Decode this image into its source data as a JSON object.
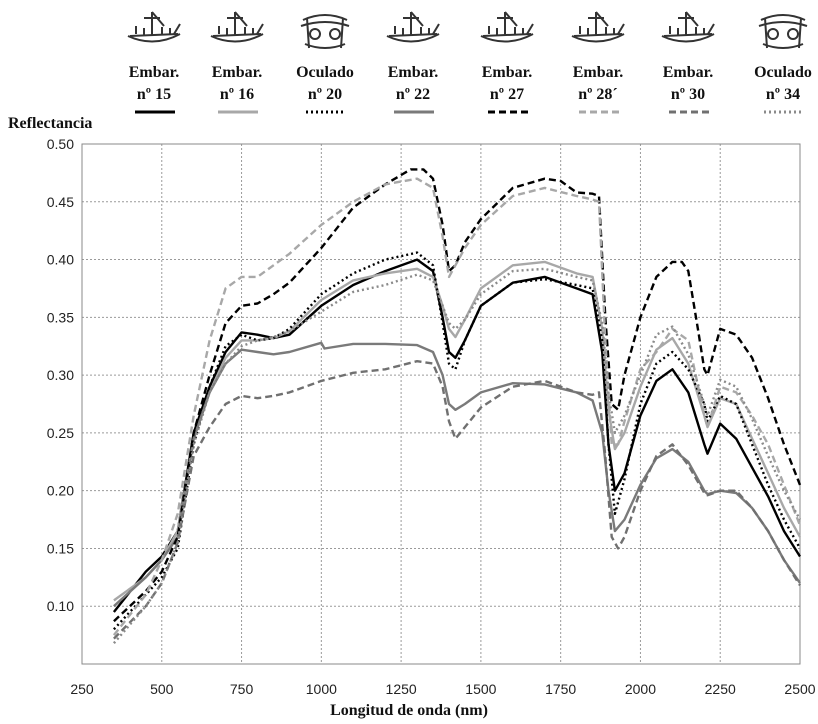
{
  "legend": [
    {
      "icon": "boat-petroglyph-icon",
      "name": "Embar.\nnº 15",
      "color": "#000000",
      "dash": "solid"
    },
    {
      "icon": "boat-petroglyph-icon",
      "name": "Embar.\nnº 16",
      "color": "#a8a8a8",
      "dash": "solid"
    },
    {
      "icon": "eye-idol-petroglyph-icon",
      "name": "Oculado\nnº 20",
      "color": "#000000",
      "dash": "dotted"
    },
    {
      "icon": "boat-petroglyph-icon",
      "name": "Embar.\nnº 22",
      "color": "#7a7a7a",
      "dash": "solid"
    },
    {
      "icon": "boat-petroglyph-icon",
      "name": "Embar.\nnº 27",
      "color": "#000000",
      "dash": "dashed"
    },
    {
      "icon": "boat-petroglyph-icon",
      "name": "Embar.\nnº 28´",
      "color": "#a8a8a8",
      "dash": "dashed"
    },
    {
      "icon": "boat-petroglyph-icon",
      "name": "Embar.\nnº 30",
      "color": "#707070",
      "dash": "dashed"
    },
    {
      "icon": "eye-idol-petroglyph-icon",
      "name": "Oculado\nnº 34",
      "color": "#8a8a8a",
      "dash": "dotted"
    }
  ],
  "chart_data": {
    "type": "line",
    "title": "",
    "xlabel": "Longitud de onda (nm)",
    "ylabel": "Reflectancia",
    "xlim": [
      250,
      2500
    ],
    "ylim": [
      0.05,
      0.5
    ],
    "xticks": [
      250,
      500,
      750,
      1000,
      1250,
      1500,
      1750,
      2000,
      2250,
      2500
    ],
    "yticks": [
      0.1,
      0.15,
      0.2,
      0.25,
      0.3,
      0.35,
      0.4,
      0.45,
      0.5
    ],
    "grid": true,
    "legend_placement": "top",
    "series": [
      {
        "name": "Embar. nº 15",
        "x": [
          350,
          450,
          500,
          550,
          600,
          650,
          700,
          750,
          800,
          850,
          900,
          1000,
          1100,
          1200,
          1300,
          1350,
          1380,
          1400,
          1420,
          1450,
          1500,
          1600,
          1700,
          1800,
          1850,
          1880,
          1900,
          1920,
          1950,
          2000,
          2050,
          2100,
          2150,
          2200,
          2210,
          2250,
          2300,
          2350,
          2400,
          2450,
          2500
        ],
        "y": [
          0.095,
          0.13,
          0.143,
          0.165,
          0.25,
          0.29,
          0.32,
          0.337,
          0.335,
          0.332,
          0.335,
          0.36,
          0.378,
          0.39,
          0.4,
          0.39,
          0.35,
          0.32,
          0.315,
          0.33,
          0.36,
          0.38,
          0.385,
          0.375,
          0.37,
          0.32,
          0.24,
          0.2,
          0.215,
          0.265,
          0.295,
          0.305,
          0.285,
          0.24,
          0.232,
          0.258,
          0.245,
          0.22,
          0.195,
          0.165,
          0.143
        ]
      },
      {
        "name": "Embar. nº 16",
        "x": [
          350,
          450,
          500,
          550,
          600,
          650,
          700,
          750,
          800,
          850,
          900,
          1000,
          1100,
          1200,
          1300,
          1350,
          1380,
          1400,
          1420,
          1450,
          1500,
          1600,
          1700,
          1800,
          1850,
          1880,
          1900,
          1920,
          1950,
          2000,
          2050,
          2100,
          2150,
          2200,
          2210,
          2250,
          2300,
          2350,
          2400,
          2450,
          2500
        ],
        "y": [
          0.105,
          0.125,
          0.14,
          0.165,
          0.245,
          0.285,
          0.315,
          0.33,
          0.33,
          0.332,
          0.338,
          0.365,
          0.382,
          0.388,
          0.392,
          0.385,
          0.36,
          0.34,
          0.333,
          0.348,
          0.375,
          0.395,
          0.398,
          0.388,
          0.385,
          0.34,
          0.27,
          0.236,
          0.25,
          0.29,
          0.322,
          0.332,
          0.31,
          0.265,
          0.255,
          0.28,
          0.275,
          0.245,
          0.215,
          0.185,
          0.16
        ]
      },
      {
        "name": "Oculado nº 20",
        "x": [
          350,
          450,
          500,
          550,
          600,
          650,
          700,
          750,
          800,
          850,
          900,
          1000,
          1100,
          1200,
          1300,
          1350,
          1380,
          1400,
          1420,
          1450,
          1500,
          1600,
          1700,
          1800,
          1850,
          1880,
          1900,
          1920,
          1950,
          2000,
          2050,
          2100,
          2150,
          2200,
          2210,
          2250,
          2300,
          2350,
          2400,
          2450,
          2500
        ],
        "y": [
          0.08,
          0.11,
          0.125,
          0.15,
          0.24,
          0.29,
          0.325,
          0.335,
          0.33,
          0.332,
          0.34,
          0.37,
          0.388,
          0.4,
          0.406,
          0.395,
          0.345,
          0.31,
          0.305,
          0.33,
          0.36,
          0.38,
          0.383,
          0.378,
          0.375,
          0.33,
          0.24,
          0.18,
          0.21,
          0.275,
          0.31,
          0.32,
          0.305,
          0.275,
          0.26,
          0.282,
          0.275,
          0.24,
          0.205,
          0.175,
          0.15
        ]
      },
      {
        "name": "Embar. nº 22",
        "x": [
          350,
          450,
          500,
          550,
          600,
          650,
          700,
          750,
          800,
          850,
          900,
          1000,
          1010,
          1100,
          1200,
          1300,
          1350,
          1380,
          1400,
          1420,
          1450,
          1500,
          1600,
          1700,
          1800,
          1850,
          1880,
          1900,
          1920,
          1950,
          2000,
          2050,
          2100,
          2150,
          2200,
          2210,
          2250,
          2300,
          2350,
          2400,
          2450,
          2500
        ],
        "y": [
          0.1,
          0.125,
          0.14,
          0.16,
          0.245,
          0.285,
          0.31,
          0.322,
          0.32,
          0.318,
          0.32,
          0.328,
          0.323,
          0.327,
          0.327,
          0.326,
          0.32,
          0.3,
          0.275,
          0.27,
          0.275,
          0.285,
          0.293,
          0.292,
          0.285,
          0.278,
          0.25,
          0.2,
          0.165,
          0.175,
          0.205,
          0.228,
          0.236,
          0.225,
          0.2,
          0.197,
          0.2,
          0.198,
          0.185,
          0.165,
          0.14,
          0.12
        ]
      },
      {
        "name": "Embar. nº 27",
        "x": [
          350,
          450,
          500,
          550,
          600,
          650,
          700,
          750,
          800,
          850,
          900,
          1000,
          1100,
          1200,
          1280,
          1320,
          1350,
          1380,
          1400,
          1420,
          1450,
          1500,
          1600,
          1700,
          1750,
          1800,
          1850,
          1870,
          1890,
          1910,
          1930,
          1950,
          2000,
          2050,
          2100,
          2130,
          2150,
          2180,
          2200,
          2210,
          2250,
          2300,
          2350,
          2400,
          2450,
          2500
        ],
        "y": [
          0.087,
          0.113,
          0.13,
          0.16,
          0.25,
          0.3,
          0.345,
          0.36,
          0.362,
          0.37,
          0.38,
          0.41,
          0.445,
          0.465,
          0.478,
          0.478,
          0.47,
          0.43,
          0.39,
          0.395,
          0.415,
          0.435,
          0.462,
          0.47,
          0.468,
          0.458,
          0.457,
          0.455,
          0.35,
          0.275,
          0.27,
          0.3,
          0.35,
          0.385,
          0.398,
          0.398,
          0.39,
          0.34,
          0.305,
          0.3,
          0.34,
          0.335,
          0.315,
          0.28,
          0.24,
          0.205
        ]
      },
      {
        "name": "Embar. nº 28´",
        "x": [
          350,
          450,
          500,
          550,
          600,
          650,
          700,
          750,
          800,
          850,
          900,
          1000,
          1100,
          1200,
          1300,
          1350,
          1380,
          1400,
          1420,
          1450,
          1500,
          1600,
          1700,
          1800,
          1850,
          1870,
          1890,
          1910,
          1930,
          1950,
          2000,
          2050,
          2100,
          2150,
          2200,
          2210,
          2250,
          2300,
          2350,
          2400,
          2450,
          2500
        ],
        "y": [
          0.075,
          0.11,
          0.14,
          0.18,
          0.265,
          0.33,
          0.375,
          0.385,
          0.385,
          0.395,
          0.405,
          0.43,
          0.45,
          0.465,
          0.47,
          0.462,
          0.42,
          0.385,
          0.395,
          0.41,
          0.43,
          0.455,
          0.462,
          0.455,
          0.452,
          0.45,
          0.33,
          0.24,
          0.24,
          0.26,
          0.305,
          0.32,
          0.34,
          0.33,
          0.265,
          0.255,
          0.29,
          0.285,
          0.265,
          0.24,
          0.205,
          0.17
        ]
      },
      {
        "name": "Embar. nº 30",
        "x": [
          350,
          450,
          500,
          550,
          600,
          650,
          700,
          750,
          800,
          850,
          900,
          1000,
          1100,
          1200,
          1300,
          1350,
          1380,
          1400,
          1420,
          1450,
          1500,
          1600,
          1700,
          1800,
          1850,
          1870,
          1890,
          1910,
          1930,
          1950,
          2000,
          2050,
          2100,
          2150,
          2200,
          2210,
          2250,
          2300,
          2350,
          2400,
          2450,
          2500
        ],
        "y": [
          0.072,
          0.1,
          0.12,
          0.155,
          0.23,
          0.255,
          0.275,
          0.282,
          0.28,
          0.282,
          0.285,
          0.295,
          0.302,
          0.305,
          0.312,
          0.31,
          0.29,
          0.26,
          0.245,
          0.255,
          0.272,
          0.29,
          0.295,
          0.285,
          0.283,
          0.285,
          0.23,
          0.16,
          0.15,
          0.16,
          0.2,
          0.23,
          0.24,
          0.222,
          0.198,
          0.196,
          0.2,
          0.2,
          0.185,
          0.165,
          0.14,
          0.118
        ]
      },
      {
        "name": "Oculado nº 34",
        "x": [
          350,
          450,
          500,
          550,
          600,
          650,
          700,
          750,
          800,
          850,
          900,
          1000,
          1100,
          1200,
          1300,
          1350,
          1380,
          1400,
          1420,
          1450,
          1500,
          1600,
          1700,
          1800,
          1850,
          1880,
          1900,
          1920,
          1950,
          2000,
          2050,
          2100,
          2150,
          2200,
          2210,
          2250,
          2300,
          2350,
          2400,
          2450,
          2500
        ],
        "y": [
          0.068,
          0.1,
          0.12,
          0.155,
          0.24,
          0.285,
          0.31,
          0.325,
          0.33,
          0.333,
          0.338,
          0.355,
          0.372,
          0.378,
          0.387,
          0.382,
          0.36,
          0.345,
          0.34,
          0.348,
          0.37,
          0.39,
          0.392,
          0.385,
          0.382,
          0.345,
          0.285,
          0.25,
          0.265,
          0.3,
          0.335,
          0.342,
          0.318,
          0.275,
          0.265,
          0.296,
          0.29,
          0.262,
          0.23,
          0.2,
          0.175
        ]
      }
    ]
  }
}
